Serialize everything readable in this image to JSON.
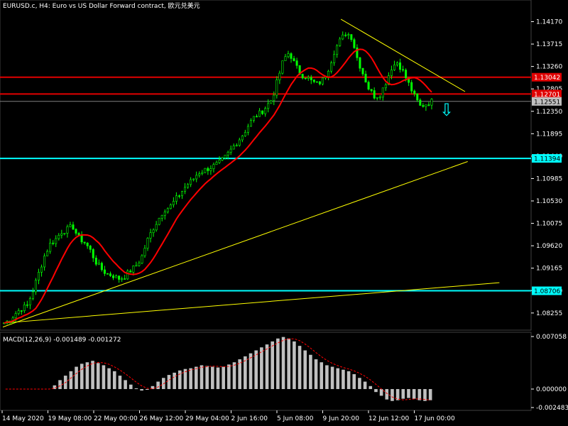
{
  "header": {
    "symbol_title": "EURUSD.c, H4:  Euro vs US Dollar Forward contract, 欧元兑美元"
  },
  "macd": {
    "title": "MACD(12,26,9) -0.001489 -0.001272",
    "axis_ticks": [
      "0.007058",
      "0.000000",
      "-0.002483"
    ]
  },
  "price_axis": {
    "ticks": [
      "1.14170",
      "1.13715",
      "1.13260",
      "1.12805",
      "1.12350",
      "1.11895",
      "1.11440",
      "1.10985",
      "1.10530",
      "1.10075",
      "1.09620",
      "1.09165",
      "1.08710",
      "1.08255"
    ],
    "badges": [
      {
        "text": "1.13042",
        "bg": "#e00000",
        "fg": "#ffffff"
      },
      {
        "text": "1.12701",
        "bg": "#e00000",
        "fg": "#ffffff"
      },
      {
        "text": "1.12551",
        "bg": "#c0c0c0",
        "fg": "#000000"
      },
      {
        "text": "1.11394",
        "bg": "#00ffff",
        "fg": "#000000"
      },
      {
        "text": "1.08706",
        "bg": "#00ffff",
        "fg": "#000000"
      }
    ]
  },
  "time_axis": {
    "labels": [
      "14 May 2020",
      "19 May 08:00",
      "22 May 00:00",
      "26 May 12:00",
      "29 May 04:00",
      "2 Jun 16:00",
      "5 Jun 08:00",
      "9 Jun 20:00",
      "12 Jun 12:00",
      "17 Jun 00:00"
    ]
  },
  "chart_data": {
    "type": "candlestick",
    "symbol": "EURUSD.c",
    "timeframe": "H4",
    "horizontal_levels": [
      1.13042,
      1.12701,
      1.11394,
      1.08706
    ],
    "current_price": 1.12551,
    "ylim": [
      1.0795,
      1.1435
    ],
    "close_path": [
      1.0805,
      1.0812,
      1.0825,
      1.0835,
      1.084,
      1.087,
      1.0905,
      1.094,
      1.0965,
      1.0975,
      1.099,
      1.0995,
      1.1002,
      1.0978,
      1.097,
      1.0955,
      1.093,
      1.0915,
      1.0905,
      1.0902,
      1.0895,
      1.0898,
      1.091,
      1.092,
      1.0935,
      1.097,
      1.0995,
      1.1015,
      1.1035,
      1.104,
      1.1055,
      1.107,
      1.1085,
      1.1095,
      1.111,
      1.1115,
      1.112,
      1.1125,
      1.1132,
      1.1145,
      1.116,
      1.1175,
      1.119,
      1.121,
      1.1225,
      1.1232,
      1.1245,
      1.126,
      1.13,
      1.134,
      1.1355,
      1.133,
      1.131,
      1.1305,
      1.1295,
      1.129,
      1.13,
      1.1325,
      1.136,
      1.138,
      1.1395,
      1.1385,
      1.134,
      1.131,
      1.128,
      1.1265,
      1.127,
      1.1295,
      1.1325,
      1.1335,
      1.1315,
      1.129,
      1.1265,
      1.1245,
      1.125,
      1.1255
    ],
    "trend_lines": [
      {
        "from": [
          0,
          1.0797
        ],
        "to": [
          0.88,
          1.1133
        ],
        "color": "#ffff00"
      },
      {
        "from": [
          0,
          1.0805
        ],
        "to": [
          0.94,
          1.0887
        ],
        "color": "#ffff00"
      },
      {
        "from": [
          0.64,
          1.1422
        ],
        "to": [
          0.875,
          1.1275
        ],
        "color": "#ffff00"
      }
    ],
    "macd_histogram": [
      0,
      0,
      0,
      0,
      0,
      0,
      0,
      0,
      0,
      0.0005,
      0.0012,
      0.0018,
      0.0024,
      0.003,
      0.0034,
      0.0036,
      0.0038,
      0.0035,
      0.0032,
      0.0028,
      0.0024,
      0.0018,
      0.0012,
      0.0006,
      0.0001,
      -0.0002,
      -0.0001,
      0.0004,
      0.001,
      0.0015,
      0.0019,
      0.0022,
      0.0025,
      0.0027,
      0.0028,
      0.003,
      0.0032,
      0.0031,
      0.003,
      0.0029,
      0.003,
      0.0033,
      0.0036,
      0.004,
      0.0044,
      0.0048,
      0.0052,
      0.0056,
      0.006,
      0.0064,
      0.0068,
      0.007,
      0.0068,
      0.0064,
      0.0058,
      0.0052,
      0.0046,
      0.004,
      0.0036,
      0.0032,
      0.003,
      0.0028,
      0.0026,
      0.0024,
      0.002,
      0.0015,
      0.001,
      0.0004,
      -0.0004,
      -0.0009,
      -0.0014,
      -0.0016,
      -0.0015,
      -0.0013,
      -0.0012,
      -0.0013,
      -0.0015,
      -0.0016,
      -0.0015
    ]
  },
  "colors": {
    "candle": "#00ff00",
    "ma": "#ff0000",
    "macd_hist": "#c0c0c0",
    "macd_signal": "#ff0000",
    "arrow": "#00ffff"
  },
  "arrow": {
    "icon": "down-arrow-icon",
    "glyph": "⇩"
  }
}
